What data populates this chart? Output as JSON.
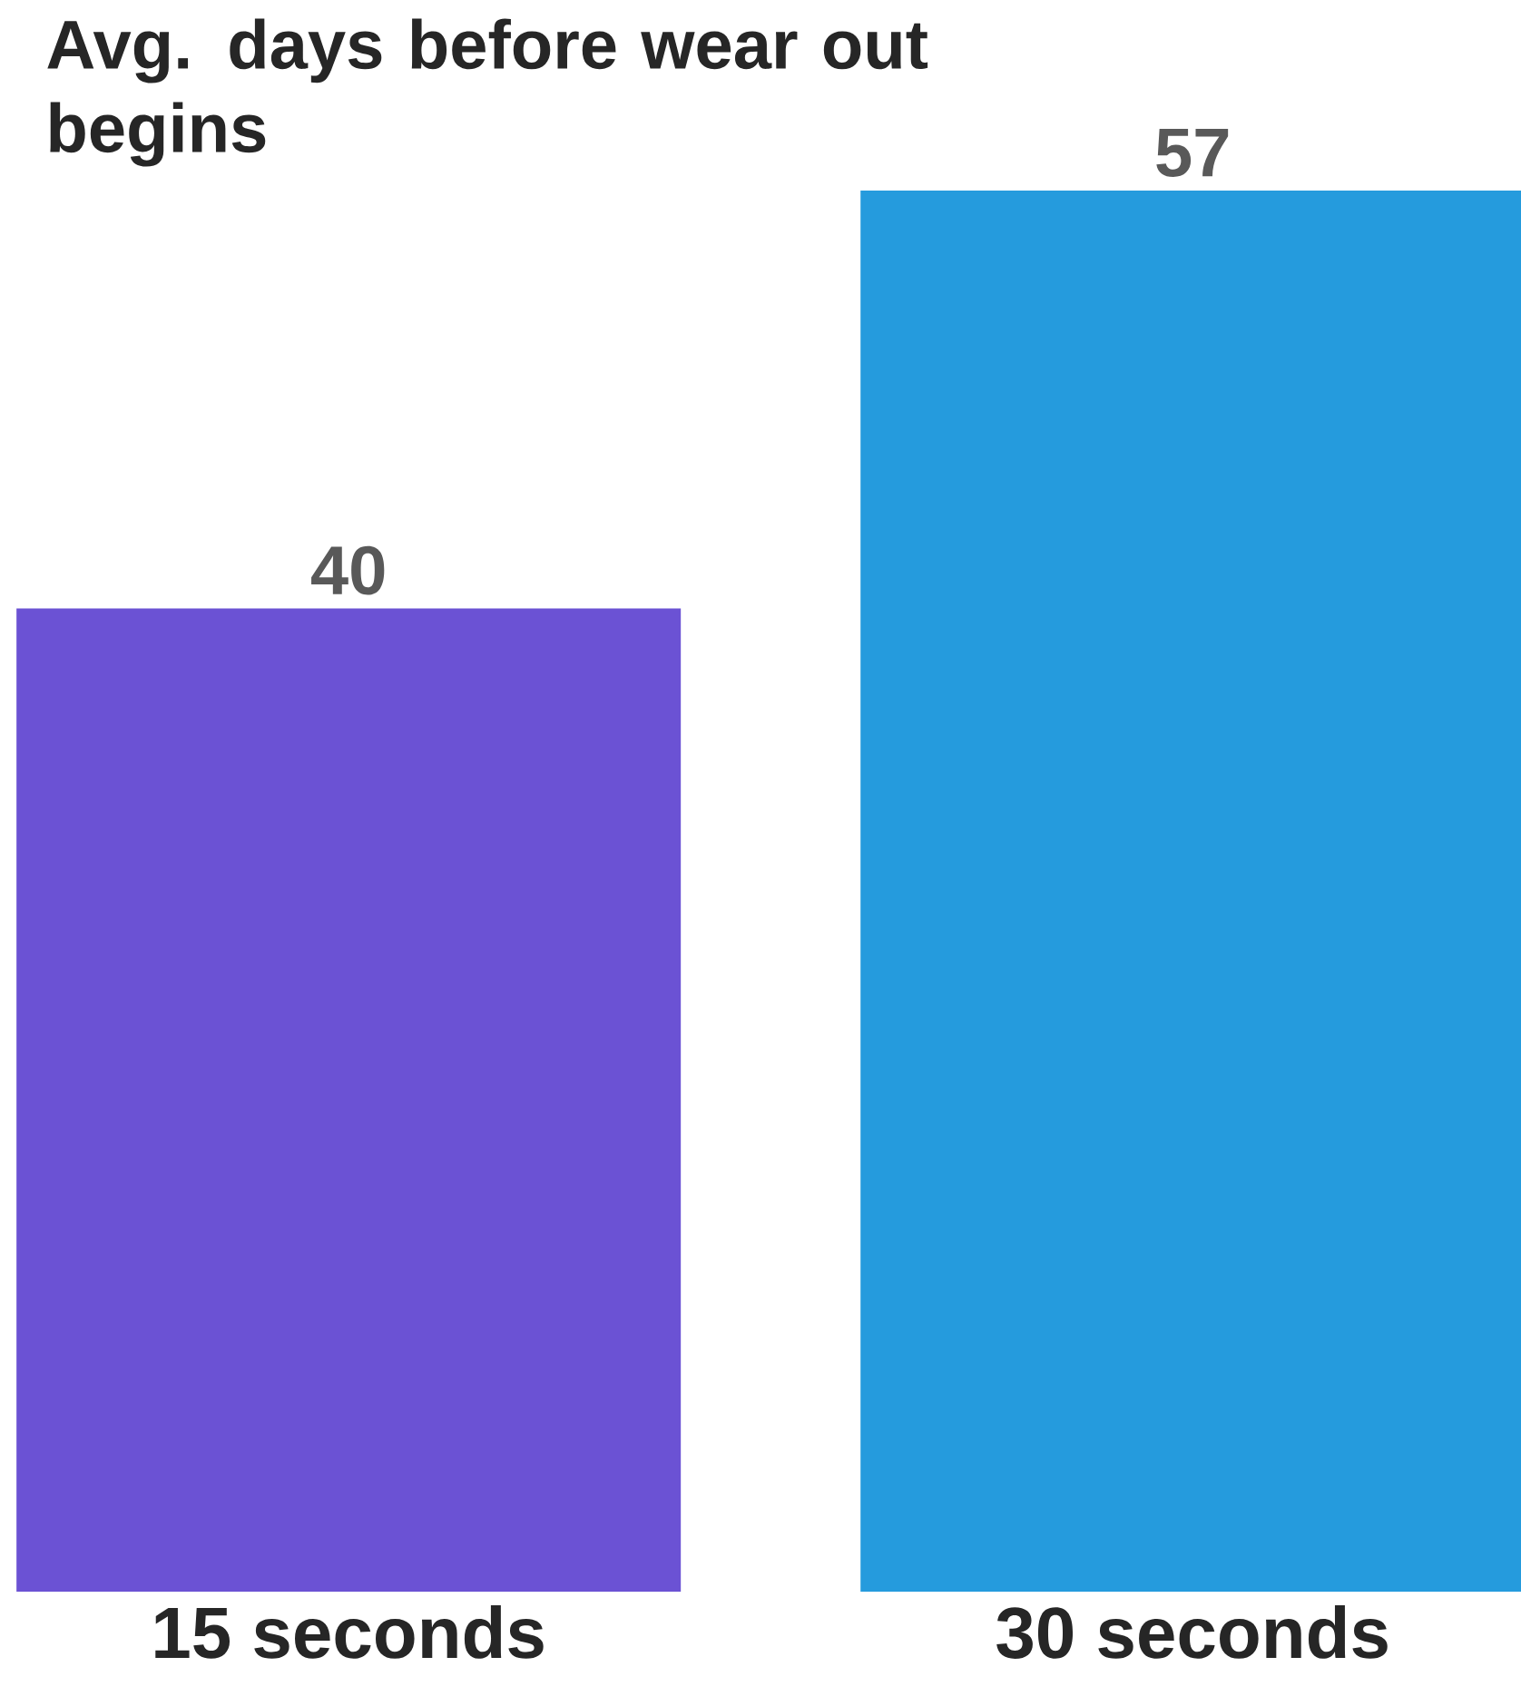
{
  "chart_data": {
    "type": "bar",
    "title": "Avg. days before wear out begins",
    "categories": [
      "15 seconds",
      "30 seconds"
    ],
    "values": [
      40,
      57
    ],
    "colors": [
      "#6b52d4",
      "#259bdd"
    ],
    "data_labels": true
  }
}
